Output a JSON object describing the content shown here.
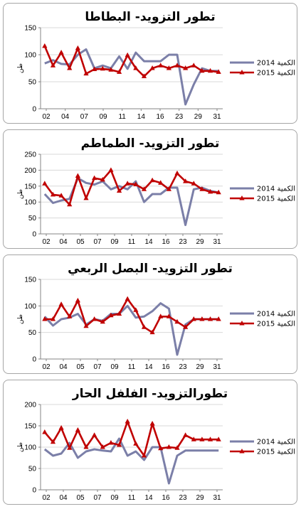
{
  "chart_data": [
    {
      "type": "line",
      "title": "تطور التزويد- البطاطا",
      "ylabel": "طن",
      "ylim": [
        0,
        150
      ],
      "yticks": [
        0,
        50,
        100,
        150
      ],
      "categories": [
        "02",
        "03",
        "04",
        "05",
        "06",
        "07",
        "08",
        "09",
        "10",
        "11",
        "12",
        "13",
        "14",
        "15",
        "16",
        "17",
        "18",
        "23",
        "24",
        "29",
        "30",
        "31"
      ],
      "xticklabels": [
        "02",
        "04",
        "07",
        "09",
        "11",
        "14",
        "16",
        "23",
        "29",
        "31"
      ],
      "legend_position": "right",
      "grid": true,
      "series": [
        {
          "name": "2014 الكمية",
          "color": "#7B7FA8",
          "marker": "none",
          "values": [
            84,
            90,
            83,
            82,
            100,
            110,
            75,
            80,
            75,
            97,
            74,
            104,
            88,
            88,
            88,
            100,
            100,
            8,
            45,
            75,
            70,
            70
          ]
        },
        {
          "name": "2015 الكمية",
          "color": "#C00000",
          "marker": "triangle",
          "values": [
            116,
            80,
            104,
            75,
            112,
            65,
            73,
            74,
            72,
            68,
            99,
            75,
            60,
            75,
            80,
            75,
            80,
            75,
            80,
            70,
            70,
            68
          ]
        }
      ]
    },
    {
      "type": "line",
      "title": "تطور التزويد- الطماطم",
      "ylabel": "طن",
      "ylim": [
        0,
        250
      ],
      "yticks": [
        0,
        50,
        100,
        150,
        200,
        250
      ],
      "categories": [
        "02",
        "03",
        "04",
        "05",
        "06",
        "07",
        "08",
        "09",
        "10",
        "11",
        "12",
        "13",
        "14",
        "15",
        "16",
        "17",
        "18",
        "23",
        "24",
        "29",
        "30",
        "31"
      ],
      "xticklabels": [
        "02",
        "04",
        "05",
        "07",
        "09",
        "11",
        "14",
        "16",
        "23",
        "29",
        "31"
      ],
      "legend_position": "right",
      "grid": true,
      "series": [
        {
          "name": "2014 الكمية",
          "color": "#7B7FA8",
          "marker": "none",
          "values": [
            125,
            97,
            105,
            110,
            175,
            160,
            155,
            165,
            140,
            150,
            140,
            165,
            100,
            125,
            125,
            145,
            145,
            28,
            140,
            145,
            135,
            130
          ]
        },
        {
          "name": "2015 الكمية",
          "color": "#C00000",
          "marker": "triangle",
          "values": [
            158,
            123,
            120,
            92,
            182,
            112,
            175,
            170,
            200,
            135,
            158,
            155,
            140,
            168,
            160,
            140,
            190,
            165,
            158,
            140,
            132,
            130
          ]
        }
      ]
    },
    {
      "type": "line",
      "title": "تطور التزويد- البصل الربعي",
      "ylabel": "طن",
      "ylim": [
        0,
        150
      ],
      "yticks": [
        0,
        50,
        100,
        150
      ],
      "categories": [
        "02",
        "03",
        "04",
        "05",
        "06",
        "07",
        "08",
        "09",
        "10",
        "11",
        "12",
        "13",
        "14",
        "15",
        "16",
        "17",
        "18",
        "23",
        "24",
        "29",
        "30",
        "31"
      ],
      "xticklabels": [
        "02",
        "04",
        "05",
        "07",
        "09",
        "11",
        "14",
        "16",
        "23",
        "29",
        "31"
      ],
      "legend_position": "right",
      "grid": true,
      "series": [
        {
          "name": "2014 الكمية",
          "color": "#7B7FA8",
          "marker": "none",
          "values": [
            80,
            63,
            75,
            78,
            85,
            65,
            75,
            72,
            85,
            85,
            100,
            78,
            80,
            90,
            105,
            95,
            8,
            65,
            75,
            75,
            75,
            75
          ]
        },
        {
          "name": "2015 الكمية",
          "color": "#C00000",
          "marker": "triangle",
          "values": [
            75,
            75,
            103,
            80,
            110,
            62,
            75,
            70,
            82,
            85,
            113,
            92,
            60,
            50,
            80,
            80,
            70,
            60,
            75,
            75,
            75,
            75
          ]
        }
      ]
    },
    {
      "type": "line",
      "title": "تطورالتزويد- الفلفل الحار",
      "ylabel": "طن",
      "ylim": [
        0,
        200
      ],
      "yticks": [
        0,
        50,
        100,
        150,
        200
      ],
      "categories": [
        "02",
        "03",
        "04",
        "05",
        "06",
        "07",
        "08",
        "09",
        "10",
        "11",
        "12",
        "13",
        "14",
        "15",
        "16",
        "17",
        "18",
        "23",
        "24",
        "29",
        "30",
        "31"
      ],
      "xticklabels": [
        "02",
        "04",
        "05",
        "07",
        "09",
        "11",
        "14",
        "16",
        "23",
        "29",
        "31"
      ],
      "legend_position": "right",
      "grid": true,
      "series": [
        {
          "name": "2014 الكمية",
          "color": "#7B7FA8",
          "marker": "none",
          "values": [
            95,
            80,
            85,
            110,
            75,
            90,
            95,
            92,
            90,
            120,
            80,
            90,
            70,
            100,
            100,
            15,
            80,
            92,
            92,
            92,
            92,
            92
          ]
        },
        {
          "name": "2015 الكمية",
          "color": "#C00000",
          "marker": "triangle",
          "values": [
            135,
            112,
            145,
            98,
            140,
            100,
            128,
            100,
            110,
            105,
            160,
            108,
            80,
            155,
            97,
            100,
            98,
            128,
            118,
            118,
            118,
            118
          ]
        }
      ]
    }
  ]
}
